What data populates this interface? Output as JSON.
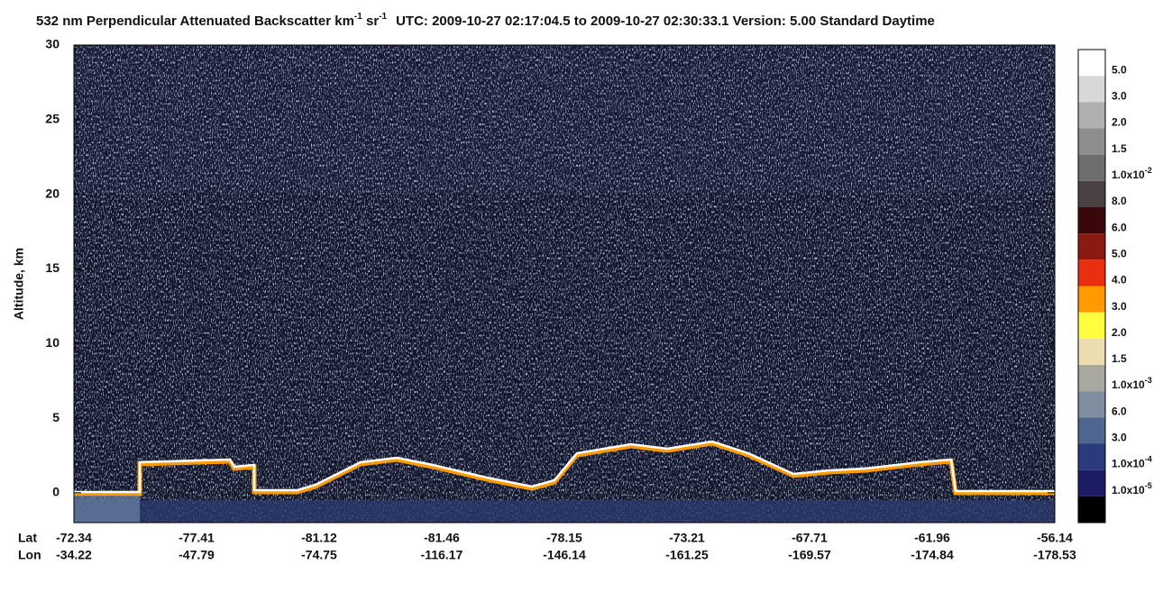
{
  "chart_data": {
    "type": "profile-image",
    "title": [
      "532 nm Perpendicular Attenuated Backscatter km",
      "-1",
      " sr",
      "-1",
      "UTC: 2009-10-27 02:17:04.5 to 2009-10-27 02:30:33.1  Version: 5.00 Standard Daytime"
    ],
    "ylabel": "Altitude, km",
    "ylim": [
      -2,
      30
    ],
    "yticks": [
      0,
      5,
      10,
      15,
      20,
      25,
      30
    ],
    "xtick_rows": [
      {
        "name": "Lat",
        "labels": [
          "-72.34",
          "-77.41",
          "-81.12",
          "-81.46",
          "-78.15",
          "-73.21",
          "-67.71",
          "-61.96",
          "-56.14"
        ]
      },
      {
        "name": "Lon",
        "labels": [
          "-34.22",
          "-47.79",
          "-74.75",
          "-116.17",
          "-146.14",
          "-161.25",
          "-169.57",
          "-174.84",
          "-178.53"
        ]
      }
    ],
    "colorbar": {
      "colors": [
        "#ffffff",
        "#d8d8d8",
        "#b0b0b0",
        "#8e8e8e",
        "#6e6e6e",
        "#4a4242",
        "#3a0808",
        "#8a1a12",
        "#e83010",
        "#ff9a00",
        "#ffff40",
        "#ecdcb0",
        "#a8a8a0",
        "#7e8e9e",
        "#4e6690",
        "#2a3a7c",
        "#1c1c64",
        "#000000"
      ],
      "labels": [
        "5.0",
        "3.0",
        "2.0",
        "1.5",
        {
          "text": "1.0x10",
          "sup": "-2"
        },
        "8.0",
        "6.0",
        "5.0",
        "4.0",
        "3.0",
        "2.0",
        "1.5",
        {
          "text": "1.0x10",
          "sup": "-3"
        },
        "6.0",
        "3.0",
        {
          "text": "1.0x10",
          "sup": "-4"
        },
        {
          "text": "1.0x10",
          "sup": "-5"
        }
      ]
    }
  }
}
